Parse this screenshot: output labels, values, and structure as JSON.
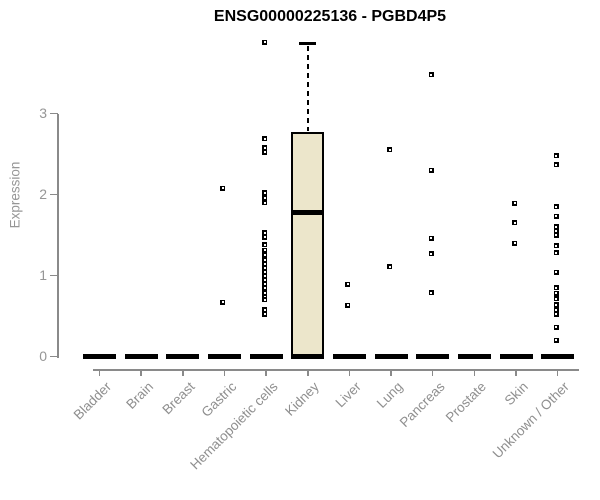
{
  "chart_data": {
    "type": "boxplot",
    "title": "ENSG00000225136 - PGBD4P5",
    "ylabel": "Expression",
    "xlabel": "",
    "yticks": [
      0,
      1,
      2,
      3
    ],
    "ylim": [
      0,
      3.9
    ],
    "grid": false,
    "legend": false,
    "categories": [
      "Bladder",
      "Brain",
      "Breast",
      "Gastric",
      "Hematopoietic cells",
      "Kidney",
      "Liver",
      "Lung",
      "Pancreas",
      "Prostate",
      "Skin",
      "Unknown / Other"
    ],
    "series": [
      {
        "category": "Bladder",
        "box": {
          "q1": 0,
          "median": 0,
          "q3": 0,
          "whisker_low": 0,
          "whisker_high": 0
        },
        "outliers": []
      },
      {
        "category": "Brain",
        "box": {
          "q1": 0,
          "median": 0,
          "q3": 0,
          "whisker_low": 0,
          "whisker_high": 0
        },
        "outliers": []
      },
      {
        "category": "Breast",
        "box": {
          "q1": 0,
          "median": 0,
          "q3": 0,
          "whisker_low": 0,
          "whisker_high": 0
        },
        "outliers": []
      },
      {
        "category": "Gastric",
        "box": {
          "q1": 0,
          "median": 0,
          "q3": 0,
          "whisker_low": 0,
          "whisker_high": 0
        },
        "outliers": [
          2.08,
          0.67
        ]
      },
      {
        "category": "Hematopoietic cells",
        "box": {
          "q1": 0,
          "median": 0,
          "q3": 0,
          "whisker_low": 0,
          "whisker_high": 0
        },
        "outliers": [
          3.88,
          2.69,
          2.58,
          2.52,
          2.02,
          1.96,
          1.9,
          1.53,
          1.47,
          1.38,
          1.31,
          1.25,
          1.19,
          1.14,
          1.09,
          1.04,
          0.99,
          0.94,
          0.89,
          0.84,
          0.79,
          0.74,
          0.7,
          0.58,
          0.52
        ]
      },
      {
        "category": "Kidney",
        "box": {
          "q1": 0,
          "median": 1.78,
          "q3": 2.77,
          "whisker_low": 0,
          "whisker_high": 3.86
        },
        "outliers": []
      },
      {
        "category": "Liver",
        "box": {
          "q1": 0,
          "median": 0,
          "q3": 0,
          "whisker_low": 0,
          "whisker_high": 0
        },
        "outliers": [
          0.89,
          0.63
        ]
      },
      {
        "category": "Lung",
        "box": {
          "q1": 0,
          "median": 0,
          "q3": 0,
          "whisker_low": 0,
          "whisker_high": 0
        },
        "outliers": [
          2.55,
          1.11
        ]
      },
      {
        "category": "Pancreas",
        "box": {
          "q1": 0,
          "median": 0,
          "q3": 0,
          "whisker_low": 0,
          "whisker_high": 0
        },
        "outliers": [
          3.48,
          2.3,
          1.46,
          1.27,
          0.79
        ]
      },
      {
        "category": "Prostate",
        "box": {
          "q1": 0,
          "median": 0,
          "q3": 0,
          "whisker_low": 0,
          "whisker_high": 0
        },
        "outliers": []
      },
      {
        "category": "Skin",
        "box": {
          "q1": 0,
          "median": 0,
          "q3": 0,
          "whisker_low": 0,
          "whisker_high": 0
        },
        "outliers": [
          1.89,
          1.65,
          1.4
        ]
      },
      {
        "category": "Unknown / Other",
        "box": {
          "q1": 0,
          "median": 0,
          "q3": 0,
          "whisker_low": 0,
          "whisker_high": 0
        },
        "outliers": [
          2.48,
          2.37,
          1.85,
          1.73,
          1.6,
          1.55,
          1.5,
          1.37,
          1.28,
          1.04,
          0.85,
          0.78,
          0.71,
          0.64,
          0.58,
          0.52,
          0.36,
          0.2
        ]
      }
    ],
    "colors": {
      "box_fill": "#ece6cb",
      "box_stroke": "#000000",
      "point": "#000000",
      "axis": "#8a8a8a",
      "tick_label": "#969696",
      "title_color": "#000000",
      "background": "#ffffff"
    }
  }
}
